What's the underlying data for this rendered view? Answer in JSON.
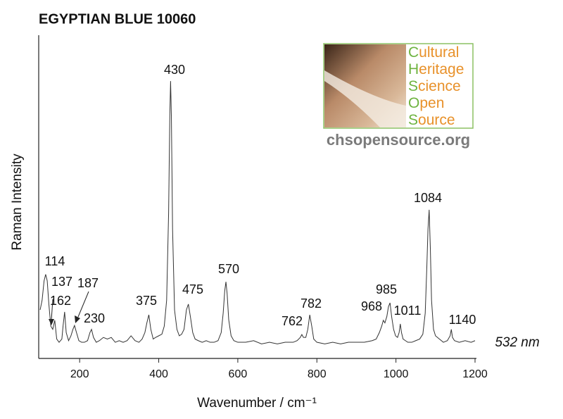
{
  "chart_data": {
    "type": "line",
    "title": "EGYPTIAN BLUE 10060",
    "x_label": "Wavenumber / cm⁻¹",
    "y_label": "Raman Intensity",
    "xlim": [
      100,
      1200
    ],
    "xticks": [
      200,
      400,
      600,
      800,
      1000,
      1200
    ],
    "ylim": [
      0,
      100
    ],
    "color": "#333333",
    "x": [
      100,
      105,
      110,
      114,
      118,
      122,
      127,
      132,
      137,
      142,
      148,
      155,
      158,
      162,
      166,
      172,
      178,
      183,
      187,
      192,
      198,
      205,
      212,
      220,
      226,
      230,
      235,
      242,
      250,
      260,
      270,
      280,
      290,
      300,
      310,
      320,
      330,
      340,
      350,
      358,
      365,
      370,
      375,
      380,
      386,
      392,
      400,
      408,
      414,
      420,
      425,
      428,
      430,
      432,
      435,
      440,
      446,
      452,
      458,
      464,
      470,
      475,
      480,
      486,
      492,
      500,
      510,
      520,
      530,
      540,
      550,
      558,
      563,
      567,
      570,
      573,
      577,
      583,
      590,
      600,
      620,
      640,
      660,
      680,
      700,
      720,
      740,
      750,
      758,
      762,
      766,
      772,
      777,
      782,
      787,
      792,
      800,
      820,
      840,
      860,
      880,
      900,
      920,
      940,
      950,
      958,
      964,
      968,
      972,
      977,
      981,
      985,
      989,
      994,
      999,
      1004,
      1008,
      1011,
      1014,
      1018,
      1024,
      1030,
      1040,
      1050,
      1060,
      1068,
      1074,
      1078,
      1081,
      1084,
      1087,
      1090,
      1095,
      1100,
      1110,
      1120,
      1130,
      1137,
      1140,
      1143,
      1148,
      1160,
      1175,
      1190,
      1200
    ],
    "values": [
      15,
      18,
      24,
      26,
      24,
      17,
      10,
      9,
      11.8,
      6,
      5,
      6,
      10,
      14.4,
      8,
      5.5,
      7,
      9,
      10.2,
      8,
      5.5,
      5,
      5,
      5.5,
      8,
      9,
      6.5,
      5,
      5.5,
      6.5,
      6,
      6.5,
      5,
      5.5,
      5,
      5.5,
      7,
      5.5,
      5,
      6,
      8,
      11,
      13.5,
      9,
      6,
      6.5,
      7,
      7.5,
      10,
      18,
      45,
      75,
      85.8,
      75,
      40,
      15,
      9,
      7,
      7.5,
      9,
      15,
      16.8,
      13,
      8,
      6,
      5.5,
      5,
      5.5,
      5,
      5,
      5.5,
      8,
      14,
      21,
      23.7,
      20,
      12,
      7,
      5.5,
      5,
      5,
      5.5,
      4.5,
      5,
      4.5,
      5,
      5,
      5.5,
      6.5,
      7.4,
      6.5,
      6.5,
      9,
      13.5,
      10,
      6,
      5,
      4.5,
      5,
      4.5,
      5,
      5,
      5,
      5.5,
      6,
      8,
      10,
      11.8,
      11,
      13,
      16,
      17.2,
      13,
      9,
      7,
      6.5,
      8,
      10.7,
      8,
      6,
      5.5,
      5,
      5,
      5.5,
      6,
      7.5,
      14,
      28,
      40,
      46,
      34,
      18,
      9,
      7,
      6,
      5,
      5.5,
      7,
      9,
      6.5,
      5.5,
      5,
      5.5,
      5,
      5.5
    ],
    "annotations": [
      "114",
      "137",
      "162",
      "187",
      "230",
      "375",
      "430",
      "475",
      "570",
      "762",
      "782",
      "968",
      "985",
      "1011",
      "1084",
      "1140",
      "532 nm"
    ]
  },
  "logo": {
    "lines": [
      "Cultural",
      "Heritage",
      "Science",
      "Open",
      "Source"
    ],
    "url": "chsopensource.org"
  }
}
